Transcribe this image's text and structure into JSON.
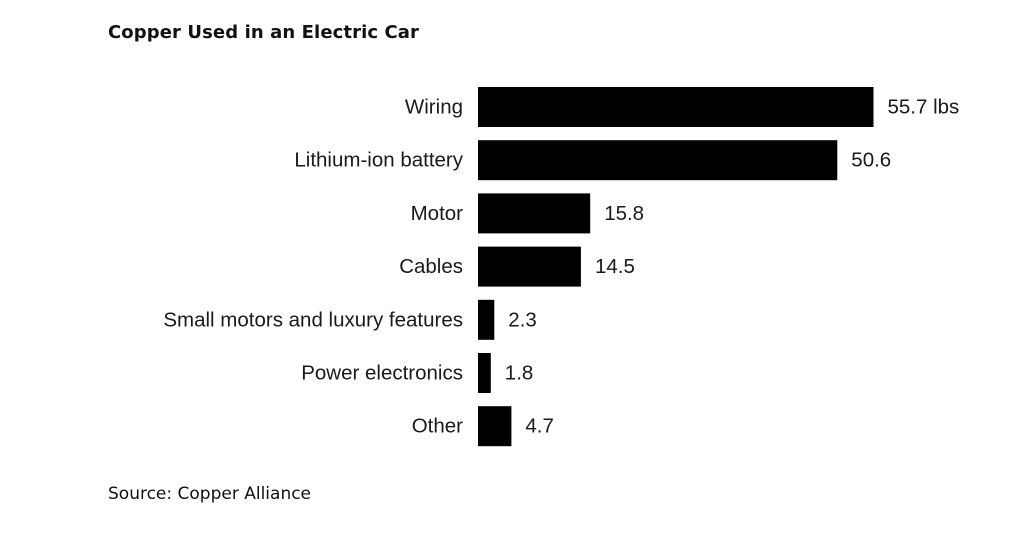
{
  "chart_data": {
    "type": "bar",
    "orientation": "horizontal",
    "title": "Copper Used in an Electric Car",
    "source": "Source: Copper Alliance",
    "categories": [
      "Wiring",
      "Lithium-ion battery",
      "Motor",
      "Cables",
      "Small motors and luxury features",
      "Power electronics",
      "Other"
    ],
    "values": [
      55.7,
      50.6,
      15.8,
      14.5,
      2.3,
      1.8,
      4.7
    ],
    "value_labels": [
      "55.7 lbs",
      "50.6",
      "15.8",
      "14.5",
      "2.3",
      "1.8",
      "4.7"
    ],
    "unit": "lbs",
    "bar_color": "#000000",
    "grid": false,
    "legend": "none"
  }
}
